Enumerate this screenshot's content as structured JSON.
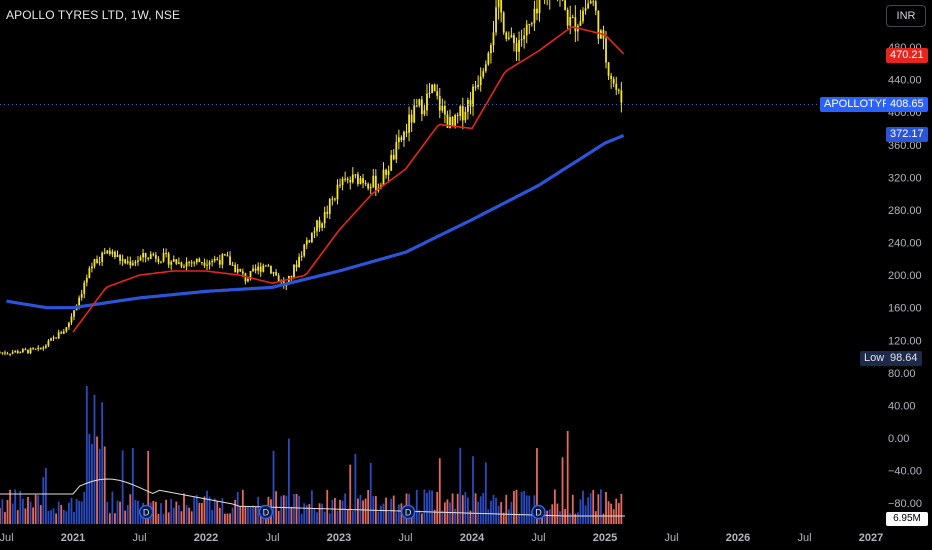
{
  "header": {
    "title": "APOLLO TYRES LTD, 1W, NSE",
    "currency": "INR"
  },
  "labels": {
    "ema_fast": "470.21",
    "ticker": "APOLLOTYRE",
    "last_price": "408.65",
    "ema_slow": "372.17",
    "low_label": "Low",
    "low_value": "98.64",
    "volume": "6.95M"
  },
  "colors": {
    "background": "#000000",
    "candle": "#f5e52b",
    "ema_fast": "#e8251c",
    "ema_slow": "#2b54d8",
    "vol_up": "#2a4bc2",
    "vol_down": "#e36a5c",
    "vol_ma": "#e0e0e0",
    "ticker_badge": "#2962ff"
  },
  "chart_data": {
    "type": "candlestick",
    "interval": "1W",
    "y_ticks": [
      "480.00",
      "440.00",
      "400.00",
      "360.00",
      "320.00",
      "280.00",
      "240.00",
      "200.00",
      "160.00",
      "120.00",
      "80.00",
      "40.00",
      "0.00",
      "−40.00",
      "−80.00"
    ],
    "x_ticks": [
      "Jul",
      "2021",
      "Jul",
      "2022",
      "Jul",
      "2023",
      "Jul",
      "2024",
      "Jul",
      "2025",
      "Jul",
      "2026",
      "Jul",
      "2027"
    ],
    "price_range": [
      -90,
      500
    ],
    "low": 98.64,
    "last": 408.65,
    "dividend_markers": 4,
    "ema_fast_points": [
      [
        2021.0,
        130
      ],
      [
        2021.25,
        185
      ],
      [
        2021.5,
        200
      ],
      [
        2021.75,
        205
      ],
      [
        2022.0,
        205
      ],
      [
        2022.25,
        200
      ],
      [
        2022.5,
        190
      ],
      [
        2022.75,
        200
      ],
      [
        2023.0,
        255
      ],
      [
        2023.25,
        300
      ],
      [
        2023.5,
        330
      ],
      [
        2023.75,
        385
      ],
      [
        2024.0,
        380
      ],
      [
        2024.25,
        450
      ],
      [
        2024.5,
        475
      ],
      [
        2024.75,
        505
      ],
      [
        2025.0,
        495
      ],
      [
        2025.15,
        470
      ]
    ],
    "ema_slow_points": [
      [
        2020.5,
        168
      ],
      [
        2020.8,
        160
      ],
      [
        2021.0,
        160
      ],
      [
        2021.5,
        172
      ],
      [
        2022.0,
        180
      ],
      [
        2022.5,
        185
      ],
      [
        2023.0,
        205
      ],
      [
        2023.5,
        228
      ],
      [
        2024.0,
        268
      ],
      [
        2024.5,
        310
      ],
      [
        2025.0,
        362
      ],
      [
        2025.15,
        372
      ]
    ],
    "price_points": [
      [
        2020.5,
        105
      ],
      [
        2020.75,
        108
      ],
      [
        2020.95,
        135
      ],
      [
        2021.05,
        175
      ],
      [
        2021.15,
        215
      ],
      [
        2021.25,
        230
      ],
      [
        2021.4,
        215
      ],
      [
        2021.6,
        225
      ],
      [
        2021.8,
        215
      ],
      [
        2022.0,
        218
      ],
      [
        2022.15,
        220
      ],
      [
        2022.3,
        195
      ],
      [
        2022.45,
        215
      ],
      [
        2022.6,
        185
      ],
      [
        2022.75,
        240
      ],
      [
        2022.9,
        275
      ],
      [
        2023.0,
        310
      ],
      [
        2023.15,
        320
      ],
      [
        2023.3,
        310
      ],
      [
        2023.45,
        360
      ],
      [
        2023.55,
        395
      ],
      [
        2023.7,
        425
      ],
      [
        2023.85,
        380
      ],
      [
        2024.0,
        420
      ],
      [
        2024.1,
        470
      ],
      [
        2024.2,
        530
      ],
      [
        2024.3,
        480
      ],
      [
        2024.45,
        505
      ],
      [
        2024.6,
        560
      ],
      [
        2024.75,
        505
      ],
      [
        2024.9,
        540
      ],
      [
        2025.0,
        470
      ],
      [
        2025.1,
        420
      ],
      [
        2025.15,
        408
      ]
    ]
  }
}
